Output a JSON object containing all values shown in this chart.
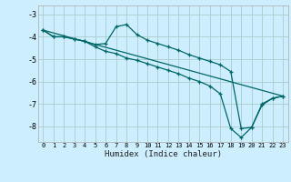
{
  "xlabel": "Humidex (Indice chaleur)",
  "bg_color": "#cceeff",
  "grid_color": "#aacccc",
  "line_color": "#006666",
  "xlim": [
    -0.5,
    23.5
  ],
  "ylim": [
    -8.7,
    -2.6
  ],
  "xticks": [
    0,
    1,
    2,
    3,
    4,
    5,
    6,
    7,
    8,
    9,
    10,
    11,
    12,
    13,
    14,
    15,
    16,
    17,
    18,
    19,
    20,
    21,
    22,
    23
  ],
  "yticks": [
    -8,
    -7,
    -6,
    -5,
    -4,
    -3
  ],
  "line1_x": [
    0,
    1,
    2,
    3,
    4,
    5,
    6,
    7,
    8,
    9,
    10,
    11,
    12,
    13,
    14,
    15,
    16,
    17,
    18,
    19,
    20,
    21,
    22,
    23
  ],
  "line1_y": [
    -3.7,
    -4.0,
    -4.0,
    -4.1,
    -4.2,
    -4.35,
    -4.3,
    -3.55,
    -3.45,
    -3.9,
    -4.15,
    -4.3,
    -4.45,
    -4.6,
    -4.8,
    -4.95,
    -5.1,
    -5.25,
    -5.55,
    -8.1,
    -8.05,
    -7.0,
    -6.75,
    -6.65
  ],
  "line2_x": [
    0,
    1,
    2,
    3,
    4,
    5,
    6,
    7,
    8,
    9,
    10,
    11,
    12,
    13,
    14,
    15,
    16,
    17,
    18,
    19,
    20,
    21,
    22,
    23
  ],
  "line2_y": [
    -3.7,
    -4.0,
    -4.0,
    -4.1,
    -4.2,
    -4.45,
    -4.65,
    -4.75,
    -4.95,
    -5.05,
    -5.2,
    -5.35,
    -5.5,
    -5.65,
    -5.85,
    -6.0,
    -6.2,
    -6.55,
    -8.1,
    -8.5,
    -8.05,
    -7.05,
    -6.75,
    -6.65
  ],
  "line3_x": [
    0,
    23
  ],
  "line3_y": [
    -3.7,
    -6.65
  ]
}
